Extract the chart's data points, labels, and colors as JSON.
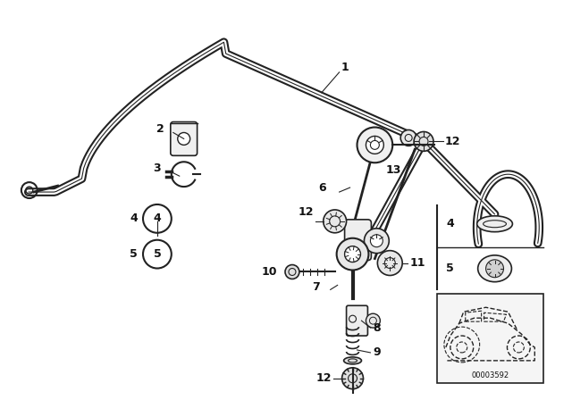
{
  "bg_color": "#ffffff",
  "line_color": "#222222",
  "text_color": "#111111",
  "code": "00003592",
  "figsize": [
    6.4,
    4.48
  ],
  "dpi": 100,
  "bar_lw_outer": 6,
  "bar_lw_inner": 3.5
}
